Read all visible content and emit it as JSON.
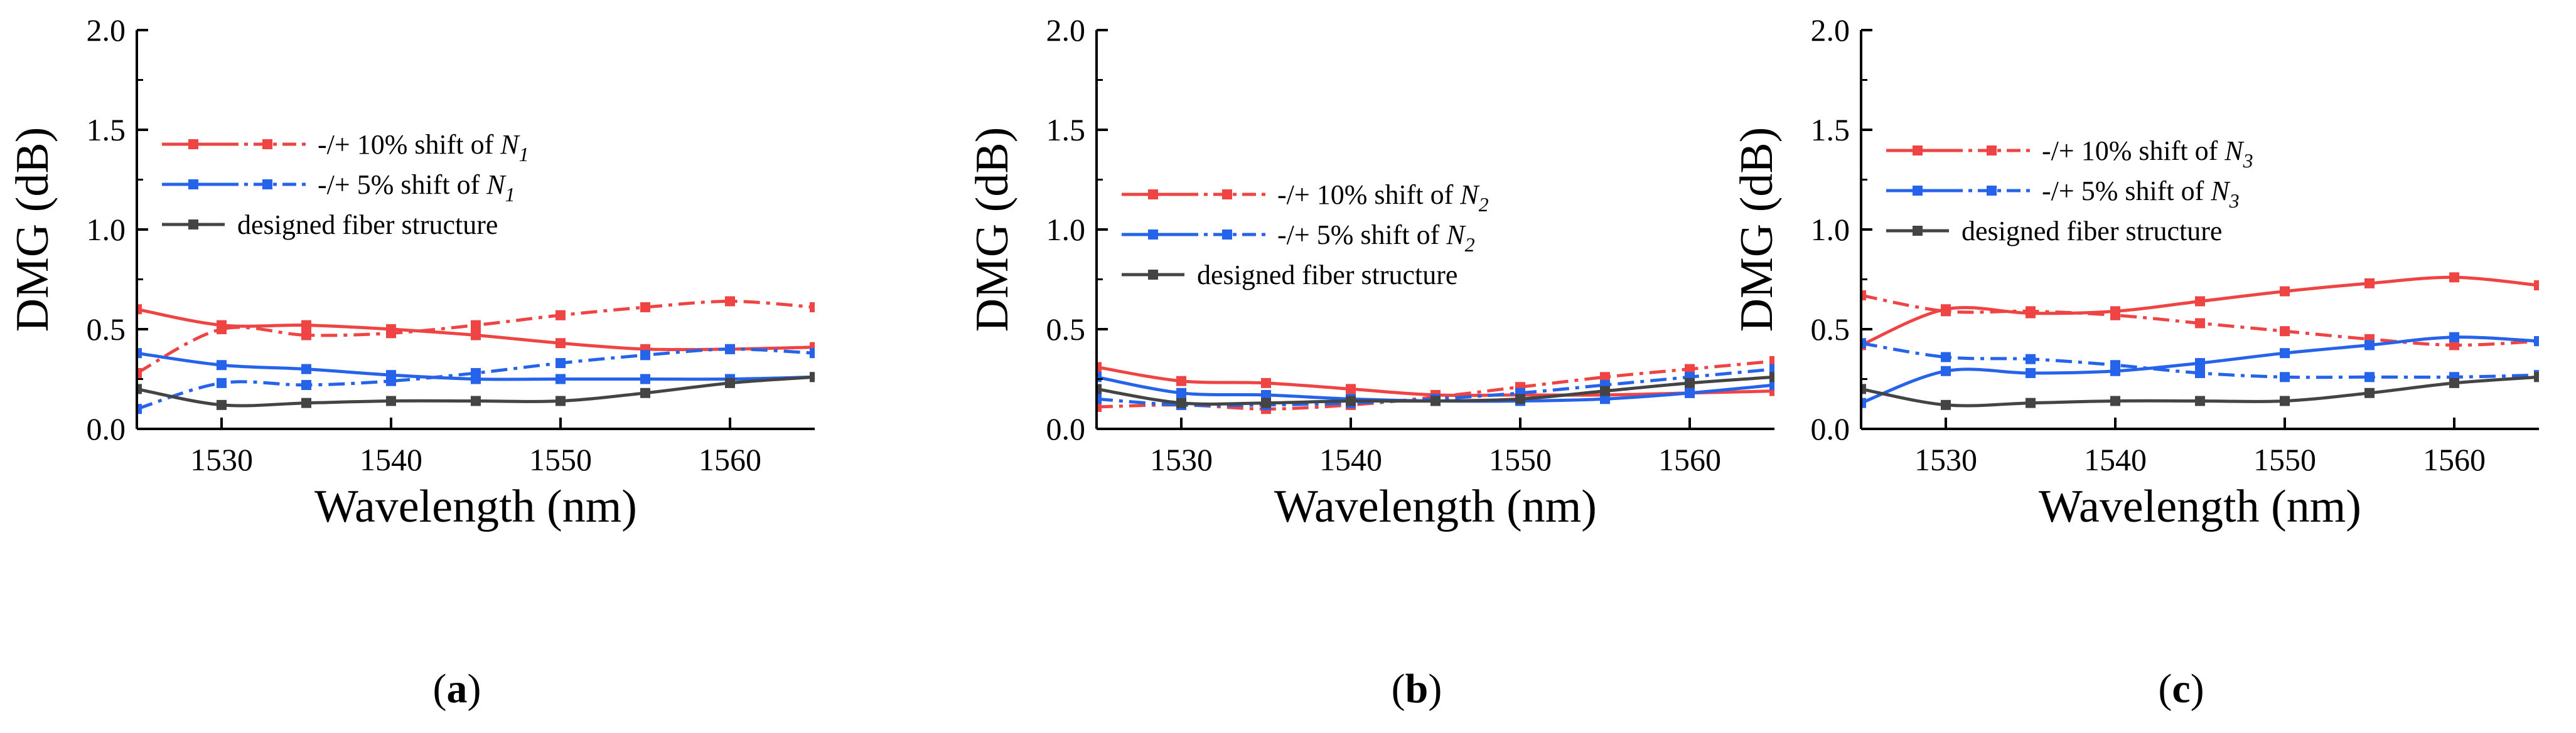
{
  "chart_data": [
    {
      "type": "line",
      "panel_label": {
        "open": "(",
        "letter": "a",
        "close": ")"
      },
      "xlabel": "Wavelength  (nm)",
      "ylabel": "DMG  (dB)",
      "xlim": [
        1525,
        1565
      ],
      "ylim": [
        0,
        2.0
      ],
      "xticks": [
        "1530",
        "1540",
        "1550",
        "1560"
      ],
      "yticks": [
        "0.0",
        "0.5",
        "1.0",
        "1.5",
        "2.0"
      ],
      "series": [
        {
          "name": "-/+ 10% shift of N1 (-10%)",
          "color": "#ef4444",
          "dash": "solid",
          "x": [
            1525,
            1530,
            1535,
            1540,
            1545,
            1550,
            1555,
            1560,
            1565
          ],
          "y": [
            0.6,
            0.52,
            0.52,
            0.5,
            0.47,
            0.43,
            0.4,
            0.4,
            0.41
          ]
        },
        {
          "name": "-/+ 10% shift of N1 (+10%)",
          "color": "#ef4444",
          "dash": "dashdot",
          "x": [
            1525,
            1530,
            1535,
            1540,
            1545,
            1550,
            1555,
            1560,
            1565
          ],
          "y": [
            0.28,
            0.5,
            0.47,
            0.48,
            0.52,
            0.57,
            0.61,
            0.64,
            0.61
          ]
        },
        {
          "name": "-/+ 5% shift of N1 (-5%)",
          "color": "#2563eb",
          "dash": "solid",
          "x": [
            1525,
            1530,
            1535,
            1540,
            1545,
            1550,
            1555,
            1560,
            1565
          ],
          "y": [
            0.38,
            0.32,
            0.3,
            0.27,
            0.25,
            0.25,
            0.25,
            0.25,
            0.26
          ]
        },
        {
          "name": "-/+ 5% shift of N1 (+5%)",
          "color": "#2563eb",
          "dash": "dashdot",
          "x": [
            1525,
            1530,
            1535,
            1540,
            1545,
            1550,
            1555,
            1560,
            1565
          ],
          "y": [
            0.1,
            0.23,
            0.22,
            0.24,
            0.28,
            0.33,
            0.37,
            0.4,
            0.38
          ]
        },
        {
          "name": "designed fiber structure",
          "color": "#444444",
          "dash": "solid",
          "x": [
            1525,
            1530,
            1535,
            1540,
            1545,
            1550,
            1555,
            1560,
            1565
          ],
          "y": [
            0.2,
            0.12,
            0.13,
            0.14,
            0.14,
            0.14,
            0.18,
            0.23,
            0.26
          ]
        }
      ],
      "legend": {
        "position": "upper-left",
        "entries": [
          {
            "color": "#ef4444",
            "text": "-/+ 10% shift of ",
            "var": "N",
            "sub": "1"
          },
          {
            "color": "#2563eb",
            "text": "-/+ 5% shift of ",
            "var": "N",
            "sub": "1"
          },
          {
            "color": "#444444",
            "text": "designed fiber structure",
            "var": "",
            "sub": ""
          }
        ]
      }
    },
    {
      "type": "line",
      "panel_label": {
        "open": "(",
        "letter": "b",
        "close": ")"
      },
      "xlabel": "Wavelength  (nm)",
      "ylabel": "DMG  (dB)",
      "xlim": [
        1525,
        1565
      ],
      "ylim": [
        0,
        2.0
      ],
      "xticks": [
        "1530",
        "1540",
        "1550",
        "1560"
      ],
      "yticks": [
        "0.0",
        "0.5",
        "1.0",
        "1.5",
        "2.0"
      ],
      "series": [
        {
          "name": "-/+ 10% shift of N2 (-10%)",
          "color": "#ef4444",
          "dash": "solid",
          "x": [
            1525,
            1530,
            1535,
            1540,
            1545,
            1550,
            1555,
            1560,
            1565
          ],
          "y": [
            0.31,
            0.24,
            0.23,
            0.2,
            0.17,
            0.17,
            0.17,
            0.18,
            0.19
          ]
        },
        {
          "name": "-/+ 10% shift of N2 (+10%)",
          "color": "#ef4444",
          "dash": "dashdot",
          "x": [
            1525,
            1530,
            1535,
            1540,
            1545,
            1550,
            1555,
            1560,
            1565
          ],
          "y": [
            0.11,
            0.12,
            0.1,
            0.12,
            0.16,
            0.21,
            0.26,
            0.3,
            0.34
          ]
        },
        {
          "name": "-/+ 5% shift of N2 (-5%)",
          "color": "#2563eb",
          "dash": "solid",
          "x": [
            1525,
            1530,
            1535,
            1540,
            1545,
            1550,
            1555,
            1560,
            1565
          ],
          "y": [
            0.26,
            0.18,
            0.17,
            0.15,
            0.14,
            0.14,
            0.15,
            0.18,
            0.22
          ]
        },
        {
          "name": "-/+ 5% shift of N2 (+5%)",
          "color": "#2563eb",
          "dash": "dashdot",
          "x": [
            1525,
            1530,
            1535,
            1540,
            1545,
            1550,
            1555,
            1560,
            1565
          ],
          "y": [
            0.15,
            0.12,
            0.12,
            0.13,
            0.15,
            0.18,
            0.22,
            0.26,
            0.3
          ]
        },
        {
          "name": "designed fiber structure",
          "color": "#444444",
          "dash": "solid",
          "x": [
            1525,
            1530,
            1535,
            1540,
            1545,
            1550,
            1555,
            1560,
            1565
          ],
          "y": [
            0.2,
            0.13,
            0.13,
            0.14,
            0.14,
            0.15,
            0.19,
            0.23,
            0.26
          ]
        }
      ],
      "legend": {
        "position": "middle-left",
        "entries": [
          {
            "color": "#ef4444",
            "text": "-/+ 10% shift of ",
            "var": "N",
            "sub": "2"
          },
          {
            "color": "#2563eb",
            "text": "-/+ 5% shift of ",
            "var": "N",
            "sub": "2"
          },
          {
            "color": "#444444",
            "text": "designed fiber structure",
            "var": "",
            "sub": ""
          }
        ]
      }
    },
    {
      "type": "line",
      "panel_label": {
        "open": "(",
        "letter": "c",
        "close": ")"
      },
      "xlabel": "Wavelength  (nm)",
      "ylabel": "DMG  (dB)",
      "xlim": [
        1525,
        1565
      ],
      "ylim": [
        0,
        2.0
      ],
      "xticks": [
        "1530",
        "1540",
        "1550",
        "1560"
      ],
      "yticks": [
        "0.0",
        "0.5",
        "1.0",
        "1.5",
        "2.0"
      ],
      "series": [
        {
          "name": "-/+ 10% shift of N3 (-10%)",
          "color": "#ef4444",
          "dash": "solid",
          "x": [
            1525,
            1530,
            1535,
            1540,
            1545,
            1550,
            1555,
            1560,
            1565
          ],
          "y": [
            0.42,
            0.6,
            0.58,
            0.59,
            0.64,
            0.69,
            0.73,
            0.76,
            0.72
          ]
        },
        {
          "name": "-/+ 10% shift of N3 (+10%)",
          "color": "#ef4444",
          "dash": "dashdot",
          "x": [
            1525,
            1530,
            1535,
            1540,
            1545,
            1550,
            1555,
            1560,
            1565
          ],
          "y": [
            0.67,
            0.59,
            0.59,
            0.57,
            0.53,
            0.49,
            0.45,
            0.42,
            0.44
          ]
        },
        {
          "name": "-/+ 5% shift of N3 (-5%)",
          "color": "#2563eb",
          "dash": "solid",
          "x": [
            1525,
            1530,
            1535,
            1540,
            1545,
            1550,
            1555,
            1560,
            1565
          ],
          "y": [
            0.13,
            0.29,
            0.28,
            0.29,
            0.33,
            0.38,
            0.42,
            0.46,
            0.44
          ]
        },
        {
          "name": "-/+ 5% shift of N3 (+5%)",
          "color": "#2563eb",
          "dash": "dashdot",
          "x": [
            1525,
            1530,
            1535,
            1540,
            1545,
            1550,
            1555,
            1560,
            1565
          ],
          "y": [
            0.43,
            0.36,
            0.35,
            0.32,
            0.28,
            0.26,
            0.26,
            0.26,
            0.27
          ]
        },
        {
          "name": "designed fiber structure",
          "color": "#444444",
          "dash": "solid",
          "x": [
            1525,
            1530,
            1535,
            1540,
            1545,
            1550,
            1555,
            1560,
            1565
          ],
          "y": [
            0.2,
            0.12,
            0.13,
            0.14,
            0.14,
            0.14,
            0.18,
            0.23,
            0.26
          ]
        }
      ],
      "legend": {
        "position": "upper-left",
        "entries": [
          {
            "color": "#ef4444",
            "text": "-/+ 10% shift of ",
            "var": "N",
            "sub": "3"
          },
          {
            "color": "#2563eb",
            "text": "-/+ 5% shift of ",
            "var": "N",
            "sub": "3"
          },
          {
            "color": "#444444",
            "text": "designed fiber structure",
            "var": "",
            "sub": ""
          }
        ]
      }
    }
  ]
}
